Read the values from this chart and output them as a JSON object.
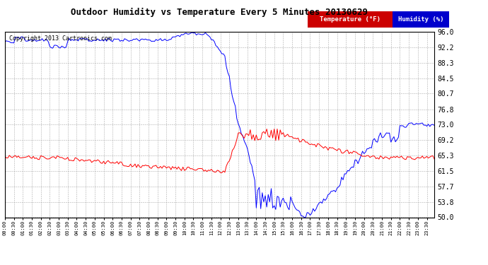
{
  "title": "Outdoor Humidity vs Temperature Every 5 Minutes 20130629",
  "copyright": "Copyright 2013 Cartronics.com",
  "legend_temp": "Temperature (°F)",
  "legend_hum": "Humidity (%)",
  "temp_color": "#ff0000",
  "hum_color": "#0000ff",
  "bg_color": "#ffffff",
  "grid_color": "#aaaaaa",
  "yticks": [
    50.0,
    53.8,
    57.7,
    61.5,
    65.3,
    69.2,
    73.0,
    76.8,
    80.7,
    84.5,
    88.3,
    92.2,
    96.0
  ],
  "temp_key_bg": "#ff0000",
  "hum_key_bg": "#0000ff",
  "n_points": 288
}
